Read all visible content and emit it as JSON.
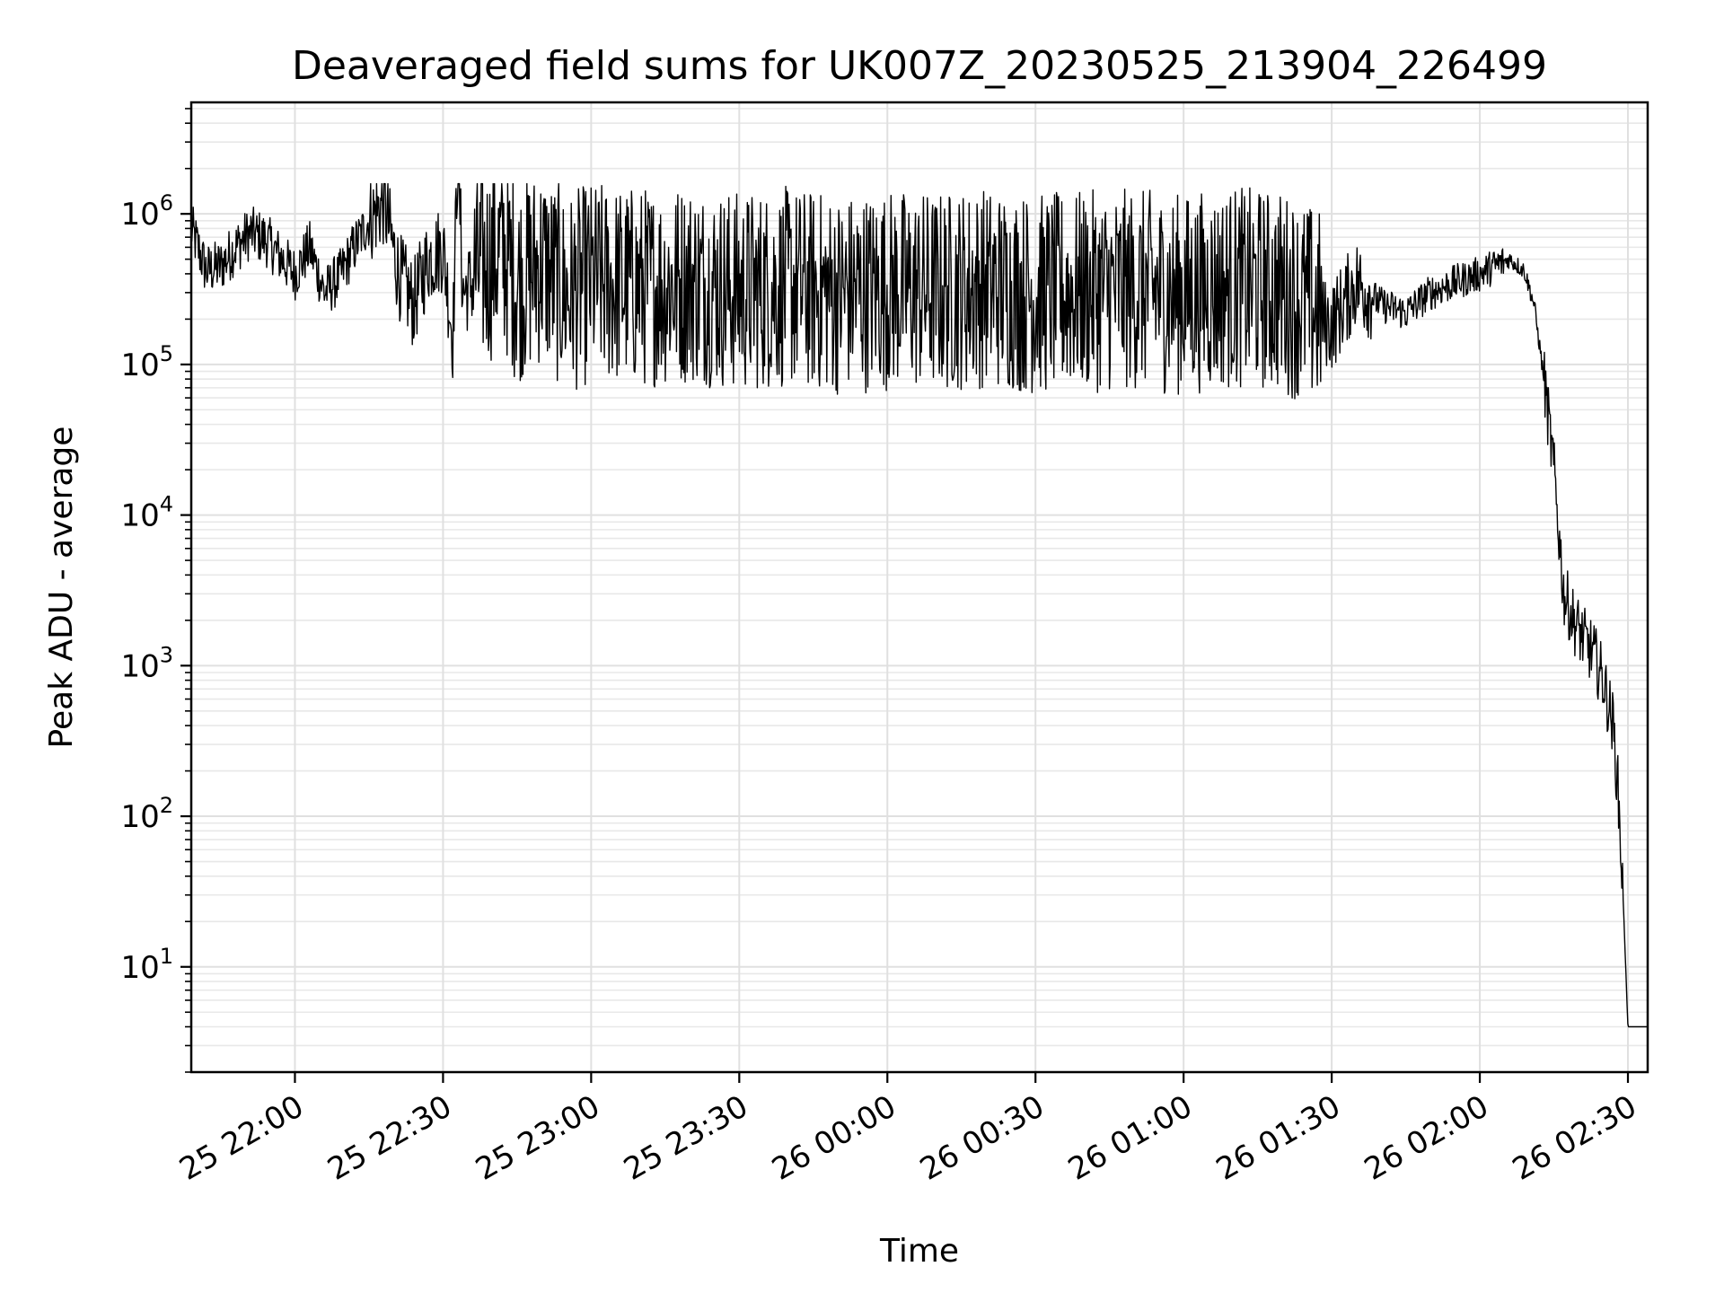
{
  "chart_data": {
    "type": "line",
    "title": "Deaveraged field sums for UK007Z_20230525_213904_226499",
    "xlabel": "Time",
    "ylabel": "Peak ADU - average",
    "yscale": "log",
    "grid": "major and minor",
    "xlim": [
      "2023-05-25 21:39",
      "2023-05-26 02:34"
    ],
    "ylim": [
      2,
      5500000
    ],
    "x_ticks": [
      "25 22:00",
      "25 22:30",
      "25 23:00",
      "25 23:30",
      "26 00:00",
      "26 00:30",
      "26 01:00",
      "26 01:30",
      "26 02:00",
      "26 02:30"
    ],
    "y_ticks": [
      {
        "base": "10",
        "exp": "1",
        "value": 10
      },
      {
        "base": "10",
        "exp": "2",
        "value": 100
      },
      {
        "base": "10",
        "exp": "3",
        "value": 1000
      },
      {
        "base": "10",
        "exp": "4",
        "value": 10000
      },
      {
        "base": "10",
        "exp": "5",
        "value": 100000
      },
      {
        "base": "10",
        "exp": "6",
        "value": 1000000
      }
    ],
    "series": [
      {
        "color": "#000000",
        "x": [
          "2023-05-25 21:39",
          "2023-05-25 21:42",
          "2023-05-25 21:45",
          "2023-05-25 21:48",
          "2023-05-25 21:51",
          "2023-05-25 21:54",
          "2023-05-25 21:57",
          "2023-05-25 22:00",
          "2023-05-25 22:03",
          "2023-05-25 22:06",
          "2023-05-25 22:09",
          "2023-05-25 22:12",
          "2023-05-25 22:15",
          "2023-05-25 22:18",
          "2023-05-25 22:21",
          "2023-05-25 22:24",
          "2023-05-25 22:27",
          "2023-05-25 22:30",
          "2023-05-25 22:32",
          "2023-05-25 22:33",
          "2023-05-25 22:34",
          "2023-05-25 22:36",
          "2023-05-25 22:39",
          "2023-05-25 22:42",
          "2023-05-25 22:45",
          "2023-05-25 22:50",
          "2023-05-25 22:55",
          "2023-05-25 23:00",
          "2023-05-25 23:10",
          "2023-05-25 23:20",
          "2023-05-25 23:30",
          "2023-05-25 23:40",
          "2023-05-25 23:50",
          "2023-05-26 00:00",
          "2023-05-26 00:10",
          "2023-05-26 00:20",
          "2023-05-26 00:30",
          "2023-05-26 00:40",
          "2023-05-26 00:50",
          "2023-05-26 01:00",
          "2023-05-26 01:10",
          "2023-05-26 01:20",
          "2023-05-26 01:30",
          "2023-05-26 01:35",
          "2023-05-26 01:40",
          "2023-05-26 01:45",
          "2023-05-26 01:50",
          "2023-05-26 01:55",
          "2023-05-26 02:00",
          "2023-05-26 02:03",
          "2023-05-26 02:06",
          "2023-05-26 02:09",
          "2023-05-26 02:11",
          "2023-05-26 02:13",
          "2023-05-26 02:15",
          "2023-05-26 02:17",
          "2023-05-26 02:19",
          "2023-05-26 02:21",
          "2023-05-26 02:23",
          "2023-05-26 02:25",
          "2023-05-26 02:27",
          "2023-05-26 02:28",
          "2023-05-26 02:29",
          "2023-05-26 02:30",
          "2023-05-26 02:32",
          "2023-05-26 02:34"
        ],
        "y": [
          800000,
          420000,
          450000,
          600000,
          750000,
          680000,
          520000,
          400000,
          600000,
          300000,
          380000,
          600000,
          900000,
          1200000,
          400000,
          250000,
          500000,
          600000,
          150000,
          2800000,
          300000,
          350000,
          400000,
          500000,
          300000,
          400000,
          250000,
          300000,
          280000,
          300000,
          260000,
          280000,
          250000,
          270000,
          260000,
          280000,
          250000,
          260000,
          270000,
          250000,
          280000,
          260000,
          180000,
          350000,
          250000,
          220000,
          300000,
          350000,
          400000,
          450000,
          500000,
          420000,
          250000,
          80000,
          20000,
          3000,
          2000,
          1500,
          1200,
          800,
          400,
          150,
          30,
          4,
          4,
          4
        ]
      }
    ]
  }
}
